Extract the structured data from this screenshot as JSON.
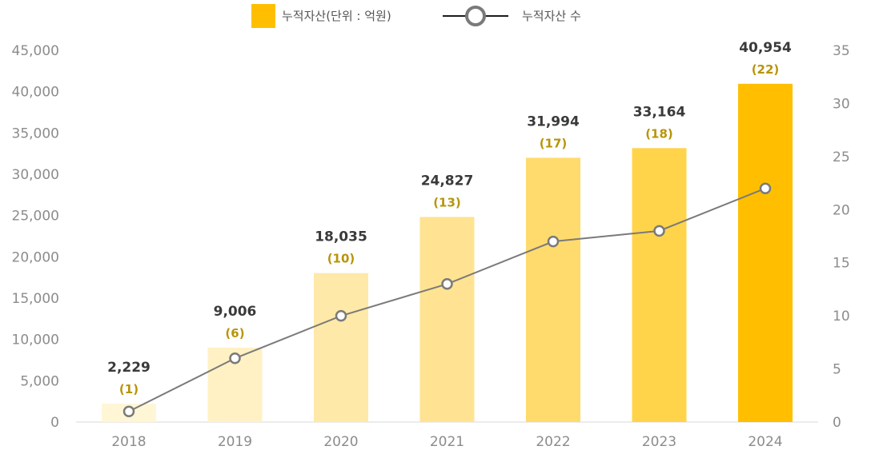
{
  "chart_data": {
    "type": "bar",
    "categories": [
      "2018",
      "2019",
      "2020",
      "2021",
      "2022",
      "2023",
      "2024"
    ],
    "series": [
      {
        "name": "누적자산(단위 : 억원)",
        "type": "bar",
        "axis": "left",
        "values": [
          2229,
          9006,
          18035,
          24827,
          31994,
          33164,
          40954
        ],
        "value_labels": [
          "2,229",
          "9,006",
          "18,035",
          "24,827",
          "31,994",
          "33,164",
          "40,954"
        ],
        "colors": [
          "#fff6d6",
          "#fff1c4",
          "#ffe9a8",
          "#ffe392",
          "#ffdb6e",
          "#ffd44a",
          "#ffbf00"
        ]
      },
      {
        "name": "누적자산 수",
        "type": "line",
        "axis": "right",
        "values": [
          1,
          6,
          10,
          13,
          17,
          18,
          22
        ],
        "value_labels": [
          "(1)",
          "(6)",
          "(10)",
          "(13)",
          "(17)",
          "(18)",
          "(22)"
        ],
        "color": "#7a7a7a"
      }
    ],
    "y_left": {
      "ylim": [
        0,
        45000
      ],
      "ticks": [
        0,
        5000,
        10000,
        15000,
        20000,
        25000,
        30000,
        35000,
        40000,
        45000
      ],
      "tick_labels": [
        "0",
        "5,000",
        "10,000",
        "15,000",
        "20,000",
        "25,000",
        "30,000",
        "35,000",
        "40,000",
        "45,000"
      ]
    },
    "y_right": {
      "ylim": [
        0,
        35
      ],
      "ticks": [
        0,
        5,
        10,
        15,
        20,
        25,
        30,
        35
      ],
      "tick_labels": [
        "0",
        "5",
        "10",
        "15",
        "20",
        "25",
        "30",
        "35"
      ]
    },
    "legend": {
      "placement": "top-center",
      "items": [
        "누적자산(단위 : 억원)",
        "누적자산 수"
      ]
    },
    "grid": false,
    "label_colors": {
      "value_label": "#3a3a3a",
      "count_label": "#b8940a",
      "axis_tick": "#8c8c8c"
    }
  }
}
